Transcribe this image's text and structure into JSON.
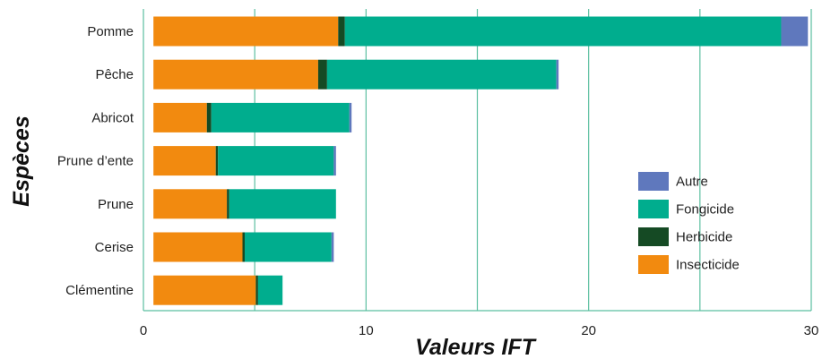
{
  "chart_data": {
    "type": "bar",
    "orientation": "horizontal",
    "stacked": true,
    "xlabel": "Valeurs IFT",
    "ylabel": "Espèces",
    "xlim": [
      0,
      30
    ],
    "xticks": [
      0,
      10,
      20,
      30
    ],
    "grid": true,
    "legend_position": "right",
    "categories": [
      "Pomme",
      "Pêche",
      "Abricot",
      "Prune d’ente",
      "Prune",
      "Cerise",
      "Clémentine"
    ],
    "series": [
      {
        "name": "Insecticide",
        "color": "#F28A0F",
        "values": [
          8.3,
          7.4,
          2.4,
          2.8,
          3.3,
          4.0,
          4.6
        ]
      },
      {
        "name": "Herbicide",
        "color": "#154A24",
        "values": [
          0.3,
          0.4,
          0.2,
          0.1,
          0.1,
          0.1,
          0.1
        ]
      },
      {
        "name": "Fongicide",
        "color": "#00AD8E",
        "values": [
          19.6,
          10.3,
          6.2,
          5.2,
          4.8,
          3.9,
          1.1
        ]
      },
      {
        "name": "Autre",
        "color": "#5F78BD",
        "values": [
          1.2,
          0.1,
          0.1,
          0.1,
          0.0,
          0.1,
          0.0
        ]
      }
    ],
    "legend_order": [
      "Autre",
      "Fongicide",
      "Herbicide",
      "Insecticide"
    ]
  }
}
